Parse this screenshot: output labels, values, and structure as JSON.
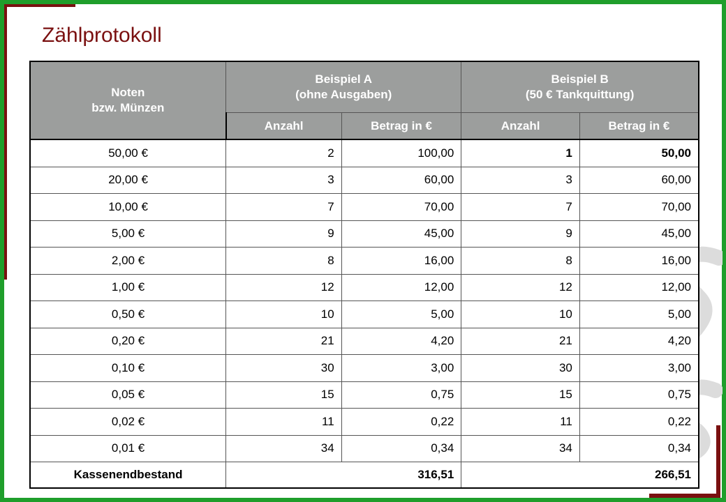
{
  "page": {
    "title": "Zählprotokoll"
  },
  "colors": {
    "frame": "#1f9e2b",
    "accent": "#7a1010",
    "header_bg": "#9c9e9d",
    "highlight": "#e8701c"
  },
  "table": {
    "header": {
      "denomination_line1": "Noten",
      "denomination_line2": "bzw. Münzen",
      "example_a_line1": "Beispiel A",
      "example_a_line2": "(ohne Ausgaben)",
      "example_b_line1": "Beispiel B",
      "example_b_line2": "(50 € Tankquittung)",
      "count_label": "Anzahl",
      "amount_label": "Betrag in €"
    },
    "rows": [
      {
        "denomination": "50,00 €",
        "a_count": "2",
        "a_amount": "100,00",
        "b_count": "1",
        "b_amount": "50,00"
      },
      {
        "denomination": "20,00 €",
        "a_count": "3",
        "a_amount": "60,00",
        "b_count": "3",
        "b_amount": "60,00"
      },
      {
        "denomination": "10,00 €",
        "a_count": "7",
        "a_amount": "70,00",
        "b_count": "7",
        "b_amount": "70,00"
      },
      {
        "denomination": "5,00 €",
        "a_count": "9",
        "a_amount": "45,00",
        "b_count": "9",
        "b_amount": "45,00"
      },
      {
        "denomination": "2,00 €",
        "a_count": "8",
        "a_amount": "16,00",
        "b_count": "8",
        "b_amount": "16,00"
      },
      {
        "denomination": "1,00 €",
        "a_count": "12",
        "a_amount": "12,00",
        "b_count": "12",
        "b_amount": "12,00"
      },
      {
        "denomination": "0,50 €",
        "a_count": "10",
        "a_amount": "5,00",
        "b_count": "10",
        "b_amount": "5,00"
      },
      {
        "denomination": "0,20 €",
        "a_count": "21",
        "a_amount": "4,20",
        "b_count": "21",
        "b_amount": "4,20"
      },
      {
        "denomination": "0,10 €",
        "a_count": "30",
        "a_amount": "3,00",
        "b_count": "30",
        "b_amount": "3,00"
      },
      {
        "denomination": "0,05 €",
        "a_count": "15",
        "a_amount": "0,75",
        "b_count": "15",
        "b_amount": "0,75"
      },
      {
        "denomination": "0,02 €",
        "a_count": "11",
        "a_amount": "0,22",
        "b_count": "11",
        "b_amount": "0,22"
      },
      {
        "denomination": "0,01 €",
        "a_count": "34",
        "a_amount": "0,34",
        "b_count": "34",
        "b_amount": "0,34"
      }
    ],
    "total": {
      "label": "Kassenendbestand",
      "a_total": "316,51",
      "b_total": "266,51"
    }
  }
}
